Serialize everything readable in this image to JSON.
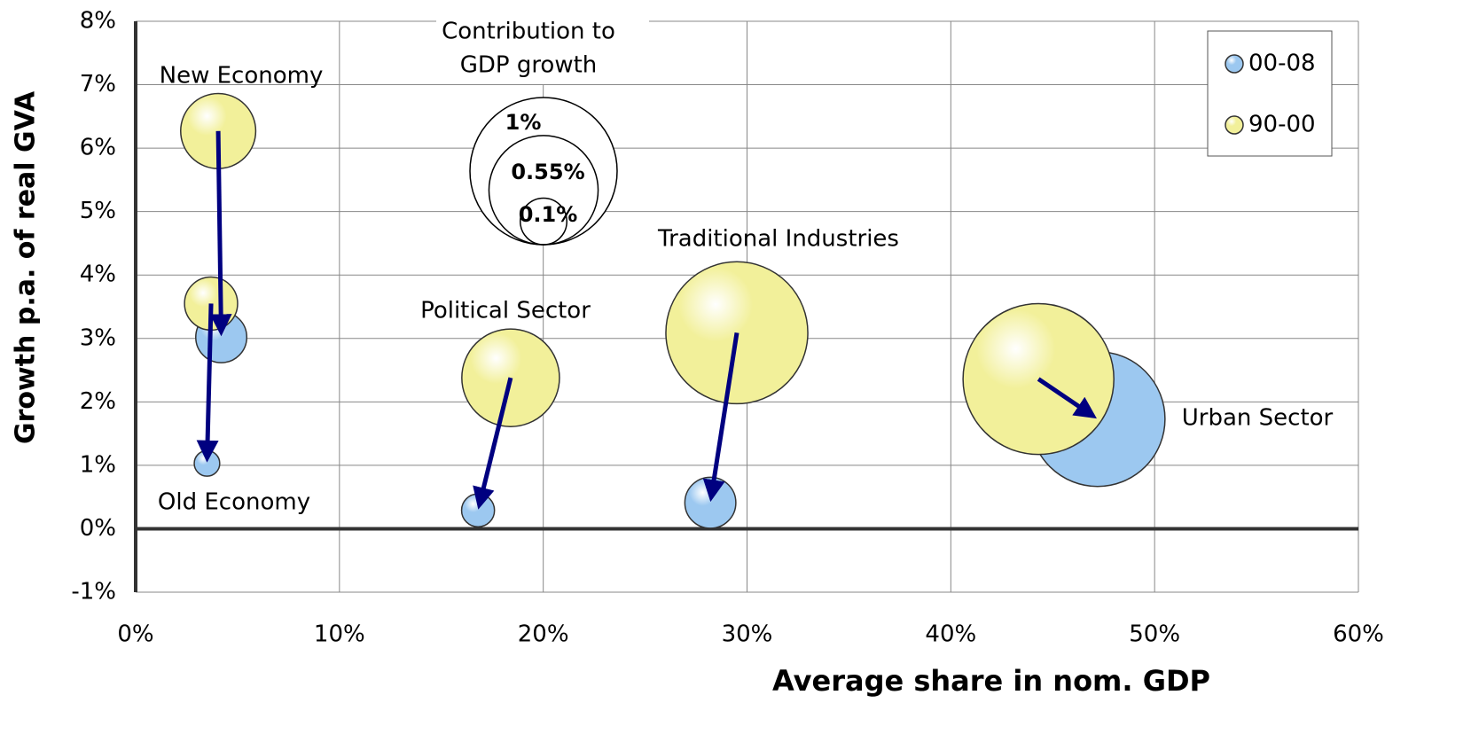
{
  "chart_data": {
    "type": "bubble",
    "xlabel": "Average share in nom. GDP",
    "ylabel": "Growth p.a. of real GVA",
    "categories": [
      "New Economy",
      "Old Economy",
      "Political Sector",
      "Traditional Industries",
      "Urban Sector"
    ],
    "series": [
      {
        "name": "00-08",
        "color": "#9cc8f0",
        "x": [
          4.2,
          3.5,
          16.8,
          28.2,
          47.2
        ],
        "values": [
          3.02,
          1.03,
          0.29,
          0.41,
          1.73
        ],
        "sizes": [
          0.12,
          0.03,
          0.05,
          0.12,
          0.84
        ]
      },
      {
        "name": "90-00",
        "color": "#f2f09a",
        "x": [
          4.05,
          3.7,
          18.4,
          29.5,
          44.3
        ],
        "values": [
          6.27,
          3.55,
          2.38,
          3.09,
          2.36
        ],
        "sizes": [
          0.26,
          0.13,
          0.44,
          0.93,
          1.05
        ]
      }
    ],
    "size_legend": {
      "title": [
        "Contribution to",
        "GDP growth"
      ],
      "values": [
        1,
        0.55,
        0.1
      ],
      "value_labels": [
        "1%",
        "0.55%",
        "0.1%"
      ]
    },
    "xlim": [
      0,
      60
    ],
    "xticks": [
      {
        "value": 0,
        "label": "0%"
      },
      {
        "value": 10,
        "label": "10%"
      },
      {
        "value": 20,
        "label": "20%"
      },
      {
        "value": 30,
        "label": "30%"
      },
      {
        "value": 40,
        "label": "40%"
      },
      {
        "value": 50,
        "label": "50%"
      },
      {
        "value": 60,
        "label": "60%"
      }
    ],
    "ylim": [
      -1,
      8
    ],
    "yticks": [
      {
        "value": -1,
        "label": "-1%"
      },
      {
        "value": 0,
        "label": "0%"
      },
      {
        "value": 1,
        "label": "1%"
      },
      {
        "value": 2,
        "label": "2%"
      },
      {
        "value": 3,
        "label": "3%"
      },
      {
        "value": 4,
        "label": "4%"
      },
      {
        "value": 5,
        "label": "5%"
      },
      {
        "value": 6,
        "label": "6%"
      },
      {
        "value": 7,
        "label": "7%"
      },
      {
        "value": 8,
        "label": "8%"
      }
    ],
    "grid": true,
    "legend": "upper right"
  }
}
